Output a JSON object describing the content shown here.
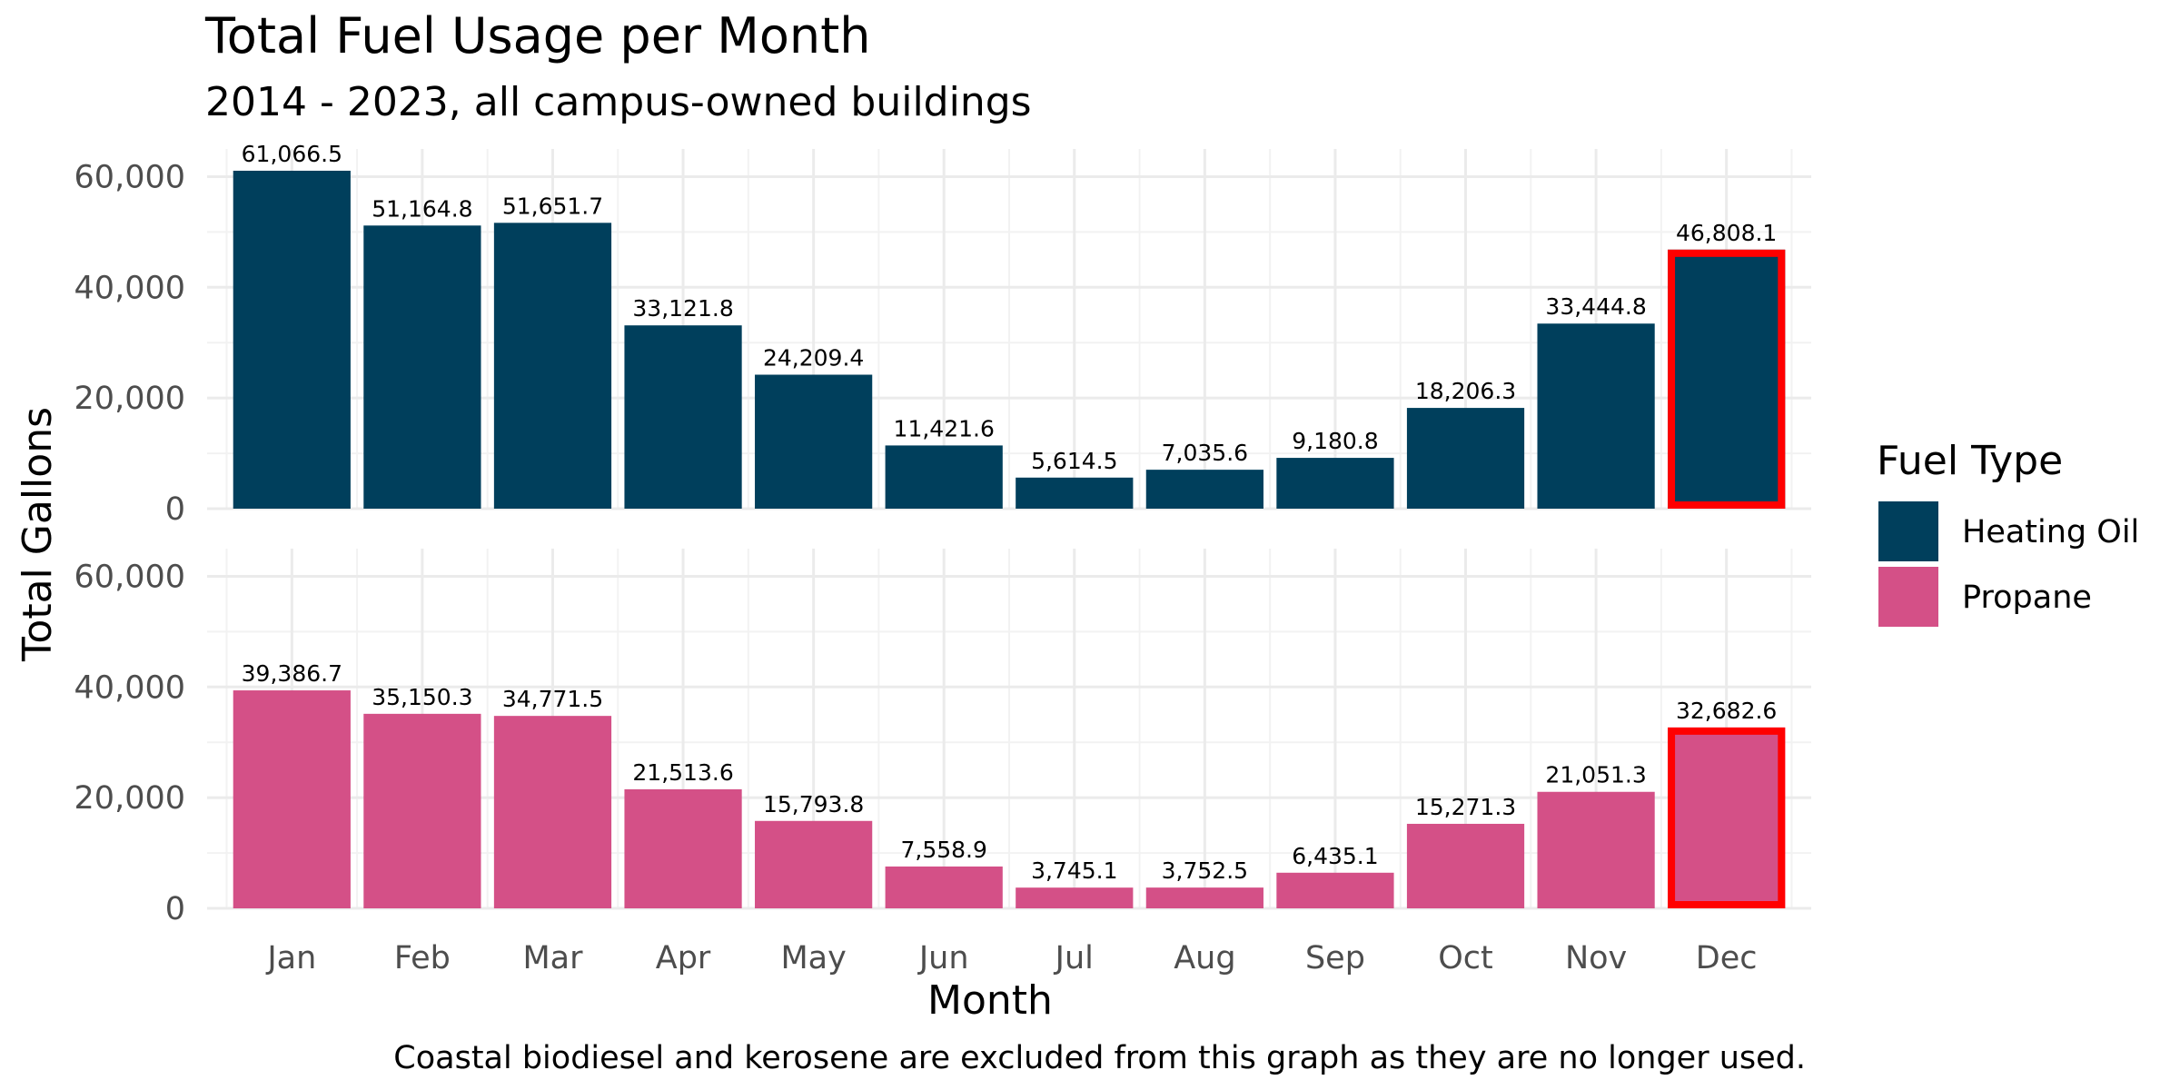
{
  "chart_data": {
    "type": "bar",
    "title": "Total Fuel Usage per Month",
    "subtitle": "2014 - 2023, all campus-owned buildings",
    "xlabel": "Month",
    "ylabel": "Total Gallons",
    "caption": "Coastal biodiesel and kerosene are excluded from this graph as they are no longer used.",
    "categories": [
      "Jan",
      "Feb",
      "Mar",
      "Apr",
      "May",
      "Jun",
      "Jul",
      "Aug",
      "Sep",
      "Oct",
      "Nov",
      "Dec"
    ],
    "ylim": [
      0,
      65000
    ],
    "yticks": [
      0,
      20000,
      40000,
      60000
    ],
    "ytick_labels": [
      "0",
      "20,000",
      "40,000",
      "60,000"
    ],
    "legend_title": "Fuel Type",
    "legend_position": "right",
    "grid": true,
    "highlight_category": "Dec",
    "highlight_color": "#ff0000",
    "series": [
      {
        "name": "Heating Oil",
        "color": "#003f5c",
        "values": [
          61066.5,
          51164.8,
          51651.7,
          33121.8,
          24209.4,
          11421.6,
          5614.5,
          7035.6,
          9180.8,
          18206.3,
          33444.8,
          46808.1
        ],
        "labels": [
          "61,066.5",
          "51,164.8",
          "51,651.7",
          "33,121.8",
          "24,209.4",
          "11,421.6",
          "5,614.5",
          "7,035.6",
          "9,180.8",
          "18,206.3",
          "33,444.8",
          "46,808.1"
        ]
      },
      {
        "name": "Propane",
        "color": "#d45087",
        "values": [
          39386.7,
          35150.3,
          34771.5,
          21513.6,
          15793.8,
          7558.9,
          3745.1,
          3752.5,
          6435.1,
          15271.3,
          21051.3,
          32682.6
        ],
        "labels": [
          "39,386.7",
          "35,150.3",
          "34,771.5",
          "21,513.6",
          "15,793.8",
          "7,558.9",
          "3,745.1",
          "3,752.5",
          "6,435.1",
          "15,271.3",
          "21,051.3",
          "32,682.6"
        ]
      }
    ]
  }
}
